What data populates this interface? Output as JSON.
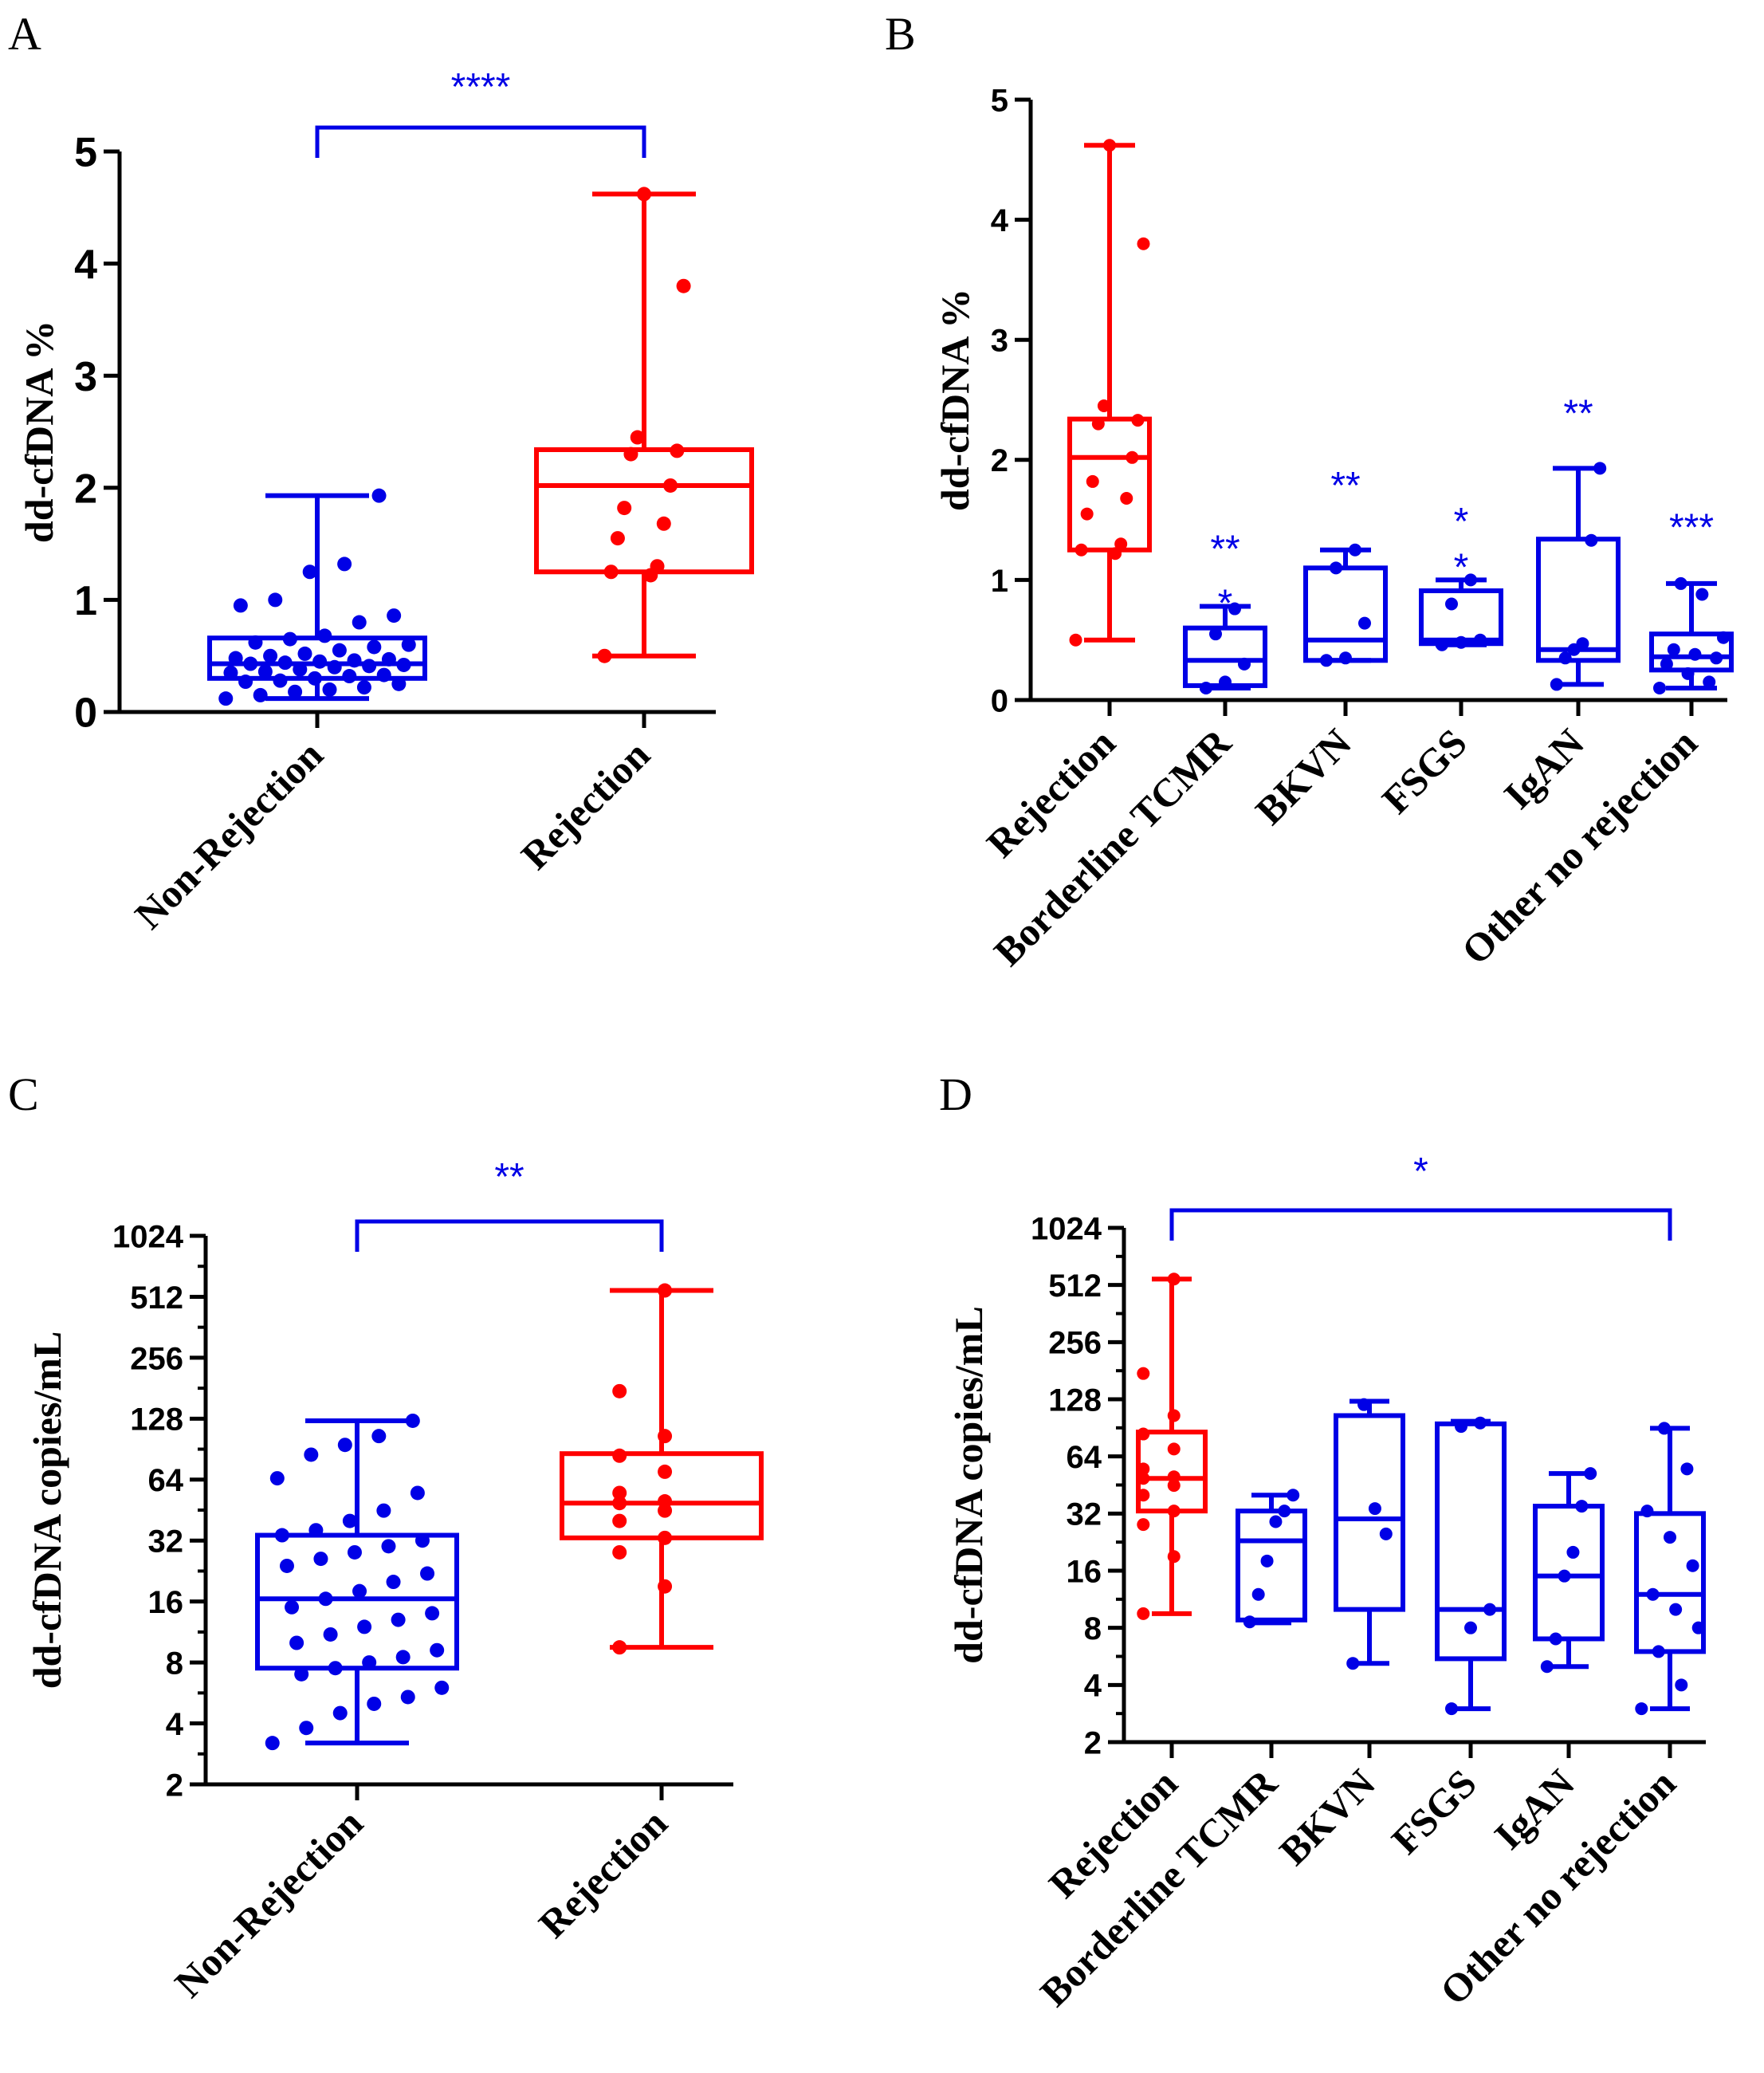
{
  "colors": {
    "rejection": "#ff0000",
    "other": "#0000e6",
    "axis": "#000000"
  },
  "chart_data": [
    {
      "panel": "A",
      "type": "box",
      "ylabel": "dd-cfDNA %",
      "scale": "linear",
      "ylim": [
        0,
        5
      ],
      "yticks": [
        "0",
        "1",
        "2",
        "3",
        "4",
        "5"
      ],
      "categories": [
        "Non-Rejection",
        "Rejection"
      ],
      "boxes": [
        {
          "name": "Non-Rejection",
          "color": "other",
          "min": 0.12,
          "q1": 0.3,
          "median": 0.43,
          "q3": 0.66,
          "max": 1.93,
          "points": [
            0.12,
            0.15,
            0.18,
            0.2,
            0.22,
            0.25,
            0.27,
            0.28,
            0.3,
            0.32,
            0.33,
            0.35,
            0.36,
            0.38,
            0.4,
            0.41,
            0.42,
            0.43,
            0.44,
            0.45,
            0.46,
            0.47,
            0.48,
            0.5,
            0.52,
            0.55,
            0.58,
            0.6,
            0.62,
            0.65,
            0.68,
            0.8,
            0.86,
            0.95,
            1.0,
            1.25,
            1.32,
            1.93
          ]
        },
        {
          "name": "Rejection",
          "color": "rejection",
          "min": 0.5,
          "q1": 1.25,
          "median": 2.02,
          "q3": 2.34,
          "max": 4.62,
          "points": [
            0.5,
            1.22,
            1.25,
            1.3,
            1.55,
            1.68,
            1.82,
            2.02,
            2.3,
            2.33,
            2.45,
            3.8,
            4.62
          ]
        }
      ],
      "comparisons": [
        {
          "from": 0,
          "to": 1,
          "label": "****"
        }
      ]
    },
    {
      "panel": "B",
      "type": "box",
      "ylabel": "dd-cfDNA %",
      "scale": "linear",
      "ylim": [
        0,
        5
      ],
      "yticks": [
        "0",
        "1",
        "2",
        "3",
        "4",
        "5"
      ],
      "categories": [
        "Rejection",
        "Borderline TCMR",
        "BKVN",
        "FSGS",
        "IgAN",
        "Other no rejection"
      ],
      "boxes": [
        {
          "name": "Rejection",
          "color": "rejection",
          "min": 0.5,
          "q1": 1.25,
          "median": 2.02,
          "q3": 2.34,
          "max": 4.62,
          "points": [
            0.5,
            1.22,
            1.25,
            1.3,
            1.55,
            1.68,
            1.82,
            2.02,
            2.3,
            2.33,
            2.45,
            3.8,
            4.62
          ]
        },
        {
          "name": "Borderline TCMR",
          "color": "other",
          "min": 0.1,
          "q1": 0.12,
          "median": 0.33,
          "q3": 0.6,
          "max": 0.78,
          "points": [
            0.1,
            0.15,
            0.3,
            0.55,
            0.76
          ]
        },
        {
          "name": "BKVN",
          "color": "other",
          "min": 0.33,
          "q1": 0.33,
          "median": 0.5,
          "q3": 1.1,
          "max": 1.25,
          "points": [
            0.33,
            0.35,
            0.64,
            1.1,
            1.25
          ]
        },
        {
          "name": "FSGS",
          "color": "other",
          "min": 0.46,
          "q1": 0.47,
          "median": 0.5,
          "q3": 0.91,
          "max": 1.0,
          "points": [
            0.46,
            0.48,
            0.5,
            0.8,
            1.0
          ]
        },
        {
          "name": "IgAN",
          "color": "other",
          "min": 0.13,
          "q1": 0.33,
          "median": 0.42,
          "q3": 1.34,
          "max": 1.93,
          "points": [
            0.13,
            0.35,
            0.42,
            0.47,
            1.33,
            1.93
          ]
        },
        {
          "name": "Other no rejection",
          "color": "other",
          "min": 0.1,
          "q1": 0.25,
          "median": 0.36,
          "q3": 0.55,
          "max": 0.97,
          "points": [
            0.1,
            0.15,
            0.22,
            0.3,
            0.35,
            0.38,
            0.42,
            0.52,
            0.88,
            0.97
          ]
        }
      ],
      "annotations": [
        {
          "category": 1,
          "label": "**",
          "y": 1.27
        },
        {
          "category": 1,
          "label": "*",
          "y": 0.82
        },
        {
          "category": 2,
          "label": "**",
          "y": 1.8
        },
        {
          "category": 3,
          "label": "*",
          "y": 1.5
        },
        {
          "category": 3,
          "label": "*",
          "y": 1.12
        },
        {
          "category": 4,
          "label": "**",
          "y": 2.4
        },
        {
          "category": 5,
          "label": "***",
          "y": 1.45
        }
      ]
    },
    {
      "panel": "C",
      "type": "box",
      "ylabel": "dd-cfDNA copies/mL",
      "scale": "log2",
      "ylim": [
        2,
        1024
      ],
      "yticks": [
        "2",
        "4",
        "8",
        "16",
        "32",
        "64",
        "128",
        "256",
        "512",
        "1024"
      ],
      "categories": [
        "Non-Rejection",
        "Rejection"
      ],
      "boxes": [
        {
          "name": "Non-Rejection",
          "color": "other",
          "min": 3.2,
          "q1": 7.5,
          "median": 16.5,
          "q3": 34,
          "max": 125,
          "points": [
            3.2,
            3.8,
            4.5,
            5,
            5.4,
            6,
            7,
            7.5,
            8,
            8.5,
            9.2,
            10,
            11,
            12,
            13,
            14,
            15,
            16.5,
            18,
            20,
            22,
            24,
            26,
            28,
            30,
            32,
            34,
            36,
            40,
            45,
            55,
            65,
            85,
            95,
            105,
            125
          ]
        },
        {
          "name": "Rejection",
          "color": "rejection",
          "min": 9.5,
          "q1": 33,
          "median": 49,
          "q3": 86,
          "max": 550,
          "points": [
            9.5,
            19,
            28,
            33,
            40,
            45,
            49,
            50,
            55,
            70,
            84,
            105,
            175,
            550
          ]
        }
      ],
      "comparisons": [
        {
          "from": 0,
          "to": 1,
          "label": "**"
        }
      ]
    },
    {
      "panel": "D",
      "type": "box",
      "ylabel": "dd-cfDNA copies/mL",
      "scale": "log2",
      "ylim": [
        2,
        1024
      ],
      "yticks": [
        "2",
        "4",
        "8",
        "16",
        "32",
        "64",
        "128",
        "256",
        "512",
        "1024"
      ],
      "categories": [
        "Rejection",
        "Borderline TCMR",
        "BKVN",
        "FSGS",
        "IgAN",
        "Other no rejection"
      ],
      "boxes": [
        {
          "name": "Rejection",
          "color": "rejection",
          "min": 9.5,
          "q1": 33,
          "median": 49,
          "q3": 86,
          "max": 550,
          "points": [
            9.5,
            19,
            28,
            33,
            40,
            45,
            49,
            50,
            55,
            70,
            84,
            105,
            175,
            550
          ]
        },
        {
          "name": "Borderline TCMR",
          "color": "other",
          "min": 8.5,
          "q1": 8.8,
          "median": 23,
          "q3": 33,
          "max": 40,
          "points": [
            8.6,
            12,
            18,
            29,
            33,
            40
          ]
        },
        {
          "name": "BKVN",
          "color": "other",
          "min": 5.2,
          "q1": 10,
          "median": 30,
          "q3": 105,
          "max": 125,
          "points": [
            5.2,
            25,
            34,
            120
          ]
        },
        {
          "name": "FSGS",
          "color": "other",
          "min": 3,
          "q1": 5.5,
          "median": 10,
          "q3": 95,
          "max": 98,
          "points": [
            3,
            8,
            10,
            92,
            96
          ]
        },
        {
          "name": "IgAN",
          "color": "other",
          "min": 5,
          "q1": 7,
          "median": 15,
          "q3": 35,
          "max": 52,
          "points": [
            5,
            7,
            15,
            20,
            35,
            52
          ]
        },
        {
          "name": "Other no rejection",
          "color": "other",
          "min": 3,
          "q1": 6,
          "median": 12,
          "q3": 32,
          "max": 90,
          "points": [
            3,
            4,
            6,
            8,
            10,
            12,
            17,
            24,
            33,
            55,
            90
          ]
        }
      ],
      "comparisons": [
        {
          "from": 0,
          "to": 5,
          "label": "*"
        }
      ]
    }
  ]
}
